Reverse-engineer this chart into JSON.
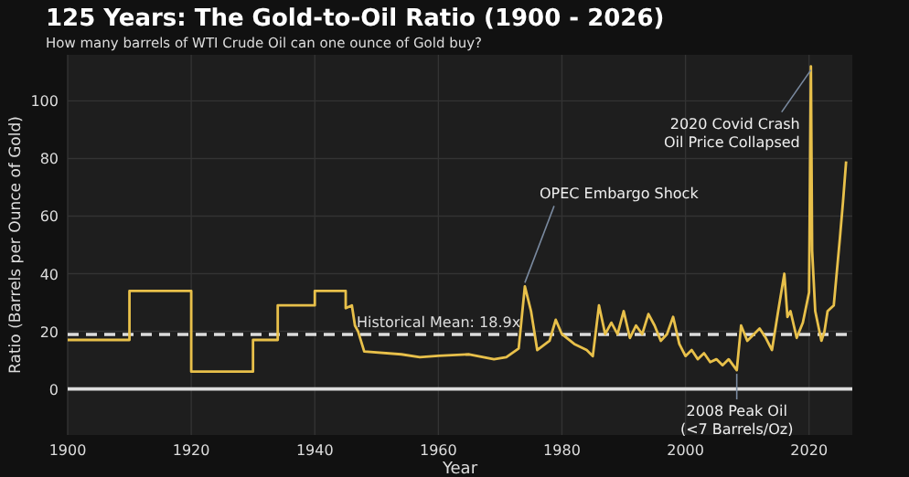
{
  "chart_data": {
    "type": "line",
    "title": "125 Years: The Gold-to-Oil Ratio (1900 - 2026)",
    "subtitle": "How many barrels of WTI Crude Oil can one ounce of Gold buy?",
    "xlabel": "Year",
    "ylabel": "Ratio (Barrels per Ounce of Gold)",
    "xlim": [
      1900,
      2027
    ],
    "ylim": [
      -16,
      116
    ],
    "xticks": [
      1900,
      1920,
      1940,
      1960,
      1980,
      2000,
      2020
    ],
    "yticks": [
      0,
      20,
      40,
      60,
      80,
      100
    ],
    "grid": true,
    "marker": "none",
    "line_style": "solid",
    "series": [
      {
        "color": "#e8c04a",
        "x": [
          1900,
          1910,
          1910,
          1920,
          1920,
          1930,
          1930,
          1934,
          1934,
          1940,
          1940,
          1945,
          1945,
          1946,
          1946.5,
          1947,
          1948,
          1954,
          1957,
          1960,
          1965,
          1969,
          1971,
          1973,
          1974,
          1975,
          1976,
          1978,
          1979,
          1980,
          1982,
          1984,
          1985,
          1986,
          1987,
          1988,
          1989,
          1990,
          1991,
          1992,
          1993,
          1994,
          1995,
          1996,
          1997,
          1998,
          1999,
          2000,
          2001,
          2002,
          2003,
          2004,
          2005,
          2006,
          2007,
          2008.3,
          2009,
          2010,
          2011,
          2012,
          2013,
          2014,
          2015,
          2016,
          2016.5,
          2017,
          2018,
          2019,
          2020,
          2020.3,
          2020.5,
          2021,
          2022,
          2022.5,
          2023,
          2024,
          2025,
          2025.5,
          2026
        ],
        "values": [
          17,
          17,
          34,
          34,
          6,
          6,
          17,
          17,
          29,
          29,
          34,
          34,
          28,
          29,
          22,
          20,
          13,
          12,
          11,
          11.5,
          12,
          10.3,
          11,
          14,
          35.6,
          27,
          13.5,
          16.7,
          24,
          19,
          15.6,
          13.5,
          11.4,
          29,
          19,
          23,
          19,
          27,
          17.7,
          22,
          19,
          26,
          22,
          16.7,
          19,
          25,
          15.6,
          11.4,
          13.5,
          10.3,
          12.4,
          9.3,
          10.3,
          8.2,
          10.3,
          6.5,
          22,
          16.7,
          18.8,
          21,
          17.7,
          13.5,
          27,
          40,
          25,
          27,
          17.7,
          23,
          33.5,
          112,
          48,
          27,
          16.7,
          20,
          27,
          29,
          52.5,
          65,
          79
        ]
      }
    ],
    "ref_lines": [
      {
        "axis": "y",
        "value": 18.9,
        "label": "Historical Mean: 18.9x",
        "color": "#dddddd",
        "line_style": "dashed"
      },
      {
        "axis": "y",
        "value": 0,
        "label": null,
        "color": "#dddddd",
        "line_style": "solid"
      }
    ],
    "annotations": [
      {
        "text": "OPEC Embargo Shock",
        "x": 1974,
        "y": 35.6
      },
      {
        "text": "2020 Covid Crash\nOil Price Collapsed",
        "x": 2020.3,
        "y": 112
      },
      {
        "text": "2008 Peak Oil\n(<7 Barrels/Oz)",
        "x": 2008.3,
        "y": 6.5
      }
    ]
  }
}
